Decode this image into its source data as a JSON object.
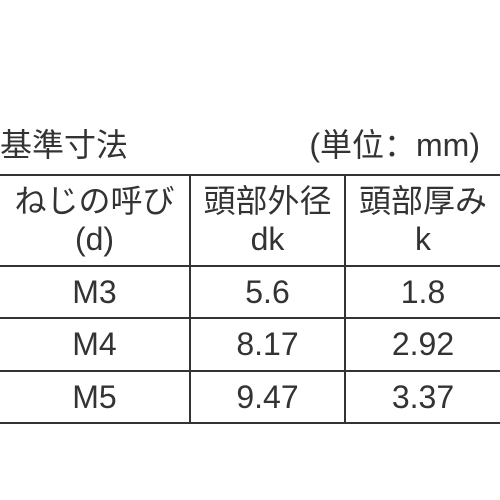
{
  "title": "基準寸法",
  "unit": "(単位：mm)",
  "table": {
    "columns": [
      {
        "line1": "ねじの呼び",
        "line2": "(d)"
      },
      {
        "line1": "頭部外径",
        "line2": "dk"
      },
      {
        "line1": "頭部厚み",
        "line2": "k"
      }
    ],
    "rows": [
      [
        "M3",
        "5.6",
        "1.8"
      ],
      [
        "M4",
        "8.17",
        "2.92"
      ],
      [
        "M5",
        "9.47",
        "3.37"
      ]
    ],
    "border_color": "#333333",
    "text_color": "#333333",
    "background_color": "#ffffff",
    "font_size": 32
  }
}
